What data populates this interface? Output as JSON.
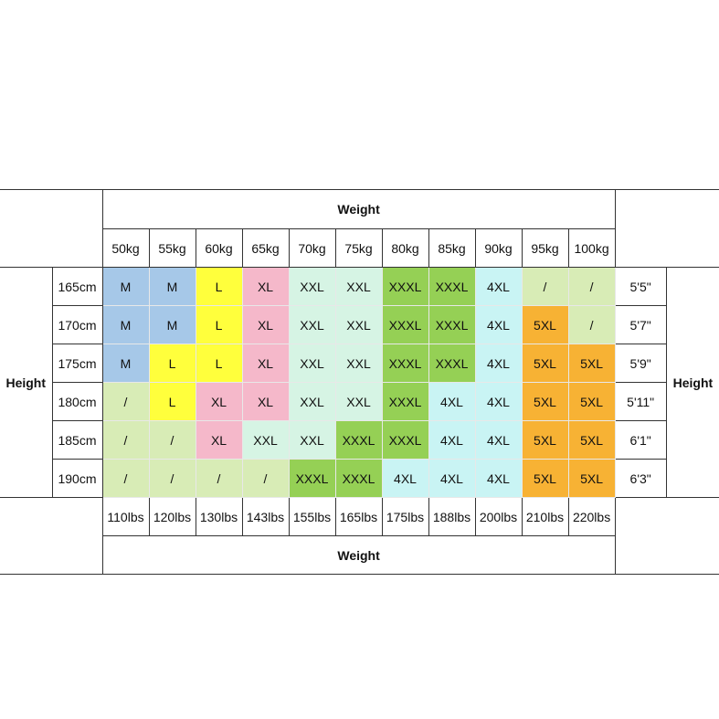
{
  "header": {
    "title": "Weight",
    "kg": [
      "50kg",
      "55kg",
      "60kg",
      "65kg",
      "70kg",
      "75kg",
      "80kg",
      "85kg",
      "90kg",
      "95kg",
      "100kg"
    ]
  },
  "side_label_left": "Height",
  "side_label_right": "Height",
  "rows": [
    {
      "cm": "165cm",
      "sizes": [
        "M",
        "M",
        "L",
        "XL",
        "XXL",
        "XXL",
        "XXXL",
        "XXXL",
        "4XL",
        "/",
        "/"
      ],
      "inches": "5'5\""
    },
    {
      "cm": "170cm",
      "sizes": [
        "M",
        "M",
        "L",
        "XL",
        "XXL",
        "XXL",
        "XXXL",
        "XXXL",
        "4XL",
        "5XL",
        "/"
      ],
      "inches": "5'7\""
    },
    {
      "cm": "175cm",
      "sizes": [
        "M",
        "L",
        "L",
        "XL",
        "XXL",
        "XXL",
        "XXXL",
        "XXXL",
        "4XL",
        "5XL",
        "5XL"
      ],
      "inches": "5'9\""
    },
    {
      "cm": "180cm",
      "sizes": [
        "/",
        "L",
        "XL",
        "XL",
        "XXL",
        "XXL",
        "XXXL",
        "4XL",
        "4XL",
        "5XL",
        "5XL"
      ],
      "inches": "5'11\""
    },
    {
      "cm": "185cm",
      "sizes": [
        "/",
        "/",
        "XL",
        "XXL",
        "XXL",
        "XXXL",
        "XXXL",
        "4XL",
        "4XL",
        "5XL",
        "5XL"
      ],
      "inches": "6'1\""
    },
    {
      "cm": "190cm",
      "sizes": [
        "/",
        "/",
        "/",
        "/",
        "XXXL",
        "XXXL",
        "4XL",
        "4XL",
        "4XL",
        "5XL",
        "5XL"
      ],
      "inches": "6'3\""
    }
  ],
  "footer": {
    "lbs": [
      "110lbs",
      "120lbs",
      "130lbs",
      "143lbs",
      "155lbs",
      "165lbs",
      "175lbs",
      "188lbs",
      "200lbs",
      "210lbs",
      "220lbs"
    ],
    "title": "Weight"
  },
  "size_colors": {
    "M": "#a6c8e8",
    "L": "#ffff3c",
    "XL": "#f5b8ca",
    "XXL": "#d6f4e4",
    "XXXL": "#95d055",
    "4XL": "#c9f4f4",
    "5XL": "#f7b234",
    "/": "#d8ecb6"
  }
}
